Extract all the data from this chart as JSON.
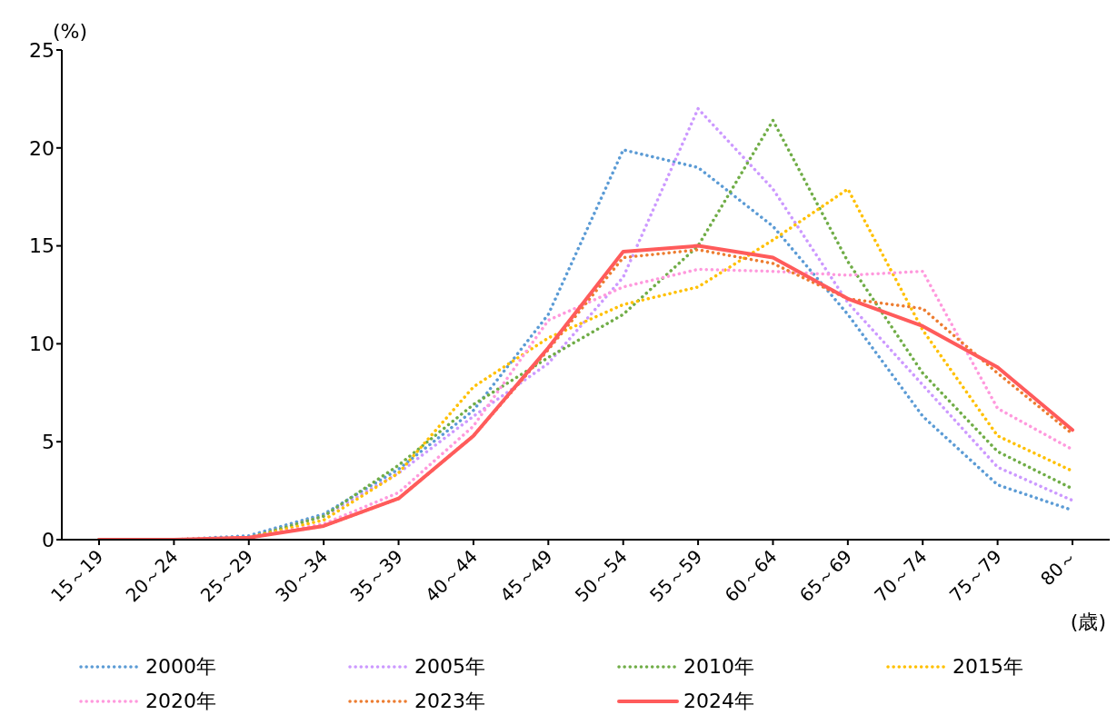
{
  "chart_data": {
    "type": "line",
    "ylabel": "(%)",
    "xlabel": "(歳)",
    "categories": [
      "15～19",
      "20～24",
      "25～29",
      "30～34",
      "35～39",
      "40～44",
      "45～49",
      "50～54",
      "55～59",
      "60～64",
      "65～69",
      "70～74",
      "75～79",
      "80～"
    ],
    "ylim": [
      0,
      25
    ],
    "yticks": [
      0,
      5,
      10,
      15,
      20,
      25
    ],
    "grid": false,
    "legend": "bottom",
    "marker": "none",
    "series": [
      {
        "name": "2000年",
        "color": "#5b9bd5",
        "line_style": "dotted",
        "values": [
          0,
          0,
          0.2,
          1.3,
          3.6,
          6.6,
          11.5,
          19.9,
          19.0,
          16.0,
          11.5,
          6.3,
          2.8,
          1.5
        ]
      },
      {
        "name": "2005年",
        "color": "#cc99ff",
        "line_style": "dotted",
        "values": [
          0,
          0,
          0.1,
          1.2,
          3.4,
          6.3,
          9.0,
          13.4,
          22.0,
          17.9,
          12.1,
          7.9,
          3.7,
          2.0
        ]
      },
      {
        "name": "2010年",
        "color": "#70ad47",
        "line_style": "dotted",
        "values": [
          0,
          0,
          0.1,
          1.2,
          3.8,
          6.9,
          9.3,
          11.5,
          15.0,
          21.4,
          14.2,
          8.5,
          4.5,
          2.6
        ]
      },
      {
        "name": "2015年",
        "color": "#ffc000",
        "line_style": "dotted",
        "values": [
          0,
          0,
          0.1,
          1.0,
          3.4,
          7.8,
          10.3,
          12.0,
          12.9,
          15.3,
          17.9,
          10.7,
          5.3,
          3.5
        ]
      },
      {
        "name": "2020年",
        "color": "#ff99dd",
        "line_style": "dotted",
        "values": [
          0,
          0,
          0.1,
          0.8,
          2.4,
          5.8,
          11.2,
          12.9,
          13.8,
          13.7,
          13.5,
          13.7,
          6.7,
          4.6
        ]
      },
      {
        "name": "2023年",
        "color": "#ed7d31",
        "line_style": "dotted",
        "values": [
          0,
          0,
          0.1,
          0.7,
          2.1,
          5.3,
          9.7,
          14.4,
          14.8,
          14.1,
          12.3,
          11.8,
          8.5,
          5.4
        ]
      },
      {
        "name": "2024年",
        "color": "#ff5b5b",
        "line_style": "solid",
        "values": [
          0,
          0,
          0.1,
          0.7,
          2.1,
          5.3,
          9.8,
          14.7,
          15.0,
          14.4,
          12.3,
          10.9,
          8.8,
          5.6
        ]
      }
    ]
  }
}
